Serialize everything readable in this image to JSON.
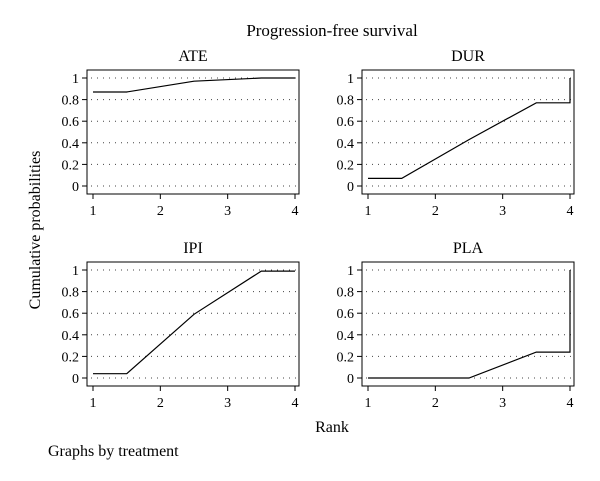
{
  "figure": {
    "title": "Progression-free survival",
    "ylabel": "Cumulative probabilities",
    "xlabel": "Rank",
    "note": "Graphs by treatment"
  },
  "chart_data": [
    {
      "type": "line",
      "title": "ATE",
      "x": [
        1,
        1.5,
        2.5,
        3.5,
        4
      ],
      "y": [
        0.87,
        0.87,
        0.97,
        1.0,
        1.0
      ],
      "xlim": [
        1,
        4
      ],
      "ylim": [
        0,
        1
      ],
      "xticks": [
        "1",
        "2",
        "3",
        "4"
      ],
      "yticks": [
        "0",
        "0.2",
        "0.4",
        "0.6",
        "0.8",
        "1"
      ],
      "grid": true
    },
    {
      "type": "line",
      "title": "DUR",
      "x": [
        1,
        1.5,
        2.5,
        3.5,
        4,
        4
      ],
      "y": [
        0.07,
        0.07,
        0.43,
        0.77,
        0.77,
        1.0
      ],
      "xlim": [
        1,
        4
      ],
      "ylim": [
        0,
        1
      ],
      "xticks": [
        "1",
        "2",
        "3",
        "4"
      ],
      "yticks": [
        "0",
        "0.2",
        "0.4",
        "0.6",
        "0.8",
        "1"
      ],
      "grid": true
    },
    {
      "type": "line",
      "title": "IPI",
      "x": [
        1,
        1.5,
        2.5,
        3.5,
        4
      ],
      "y": [
        0.04,
        0.04,
        0.59,
        0.99,
        0.99
      ],
      "xlim": [
        1,
        4
      ],
      "ylim": [
        0,
        1
      ],
      "xticks": [
        "1",
        "2",
        "3",
        "4"
      ],
      "yticks": [
        "0",
        "0.2",
        "0.4",
        "0.6",
        "0.8",
        "1"
      ],
      "grid": true
    },
    {
      "type": "line",
      "title": "PLA",
      "x": [
        1,
        1.5,
        2.5,
        3.5,
        4,
        4
      ],
      "y": [
        0.0,
        0.0,
        0.0,
        0.24,
        0.24,
        1.0
      ],
      "xlim": [
        1,
        4
      ],
      "ylim": [
        0,
        1
      ],
      "xticks": [
        "1",
        "2",
        "3",
        "4"
      ],
      "yticks": [
        "0",
        "0.2",
        "0.4",
        "0.6",
        "0.8",
        "1"
      ],
      "grid": true
    }
  ]
}
